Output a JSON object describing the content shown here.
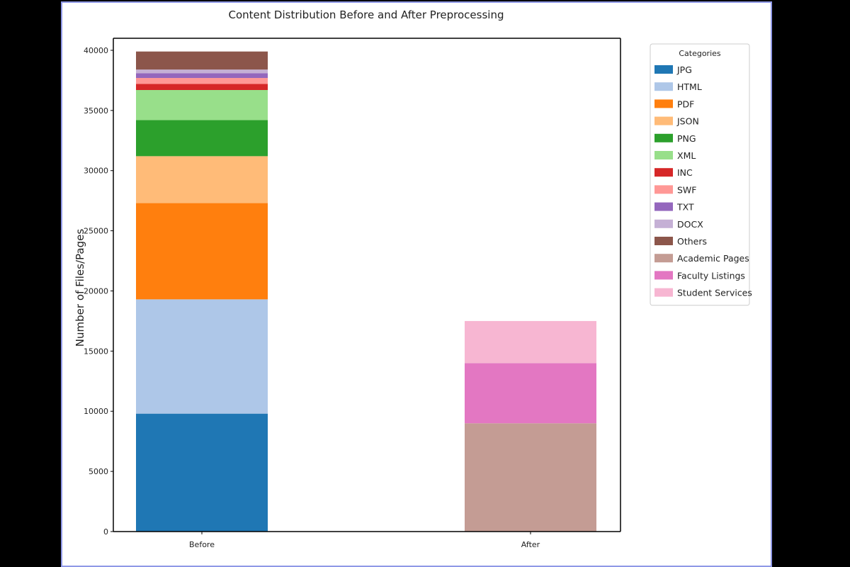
{
  "chart_data": {
    "type": "bar",
    "stacked": true,
    "title": "Content Distribution Before and After Preprocessing",
    "xlabel": "",
    "ylabel": "Number of Files/Pages",
    "categories": [
      "Before",
      "After"
    ],
    "ylim": [
      0,
      41000
    ],
    "yticks": [
      0,
      5000,
      10000,
      15000,
      20000,
      25000,
      30000,
      35000,
      40000
    ],
    "grid": false,
    "legend": {
      "title": "Categories",
      "placement": "outside-right"
    },
    "series": [
      {
        "name": "JPG",
        "color": "#1f77b4",
        "values": [
          9800,
          0
        ]
      },
      {
        "name": "HTML",
        "color": "#aec7e8",
        "values": [
          9500,
          0
        ]
      },
      {
        "name": "PDF",
        "color": "#ff7f0e",
        "values": [
          8000,
          0
        ]
      },
      {
        "name": "JSON",
        "color": "#ffbb78",
        "values": [
          3900,
          0
        ]
      },
      {
        "name": "PNG",
        "color": "#2ca02c",
        "values": [
          3000,
          0
        ]
      },
      {
        "name": "XML",
        "color": "#98df8a",
        "values": [
          2500,
          0
        ]
      },
      {
        "name": "INC",
        "color": "#d62728",
        "values": [
          500,
          0
        ]
      },
      {
        "name": "SWF",
        "color": "#ff9896",
        "values": [
          500,
          0
        ]
      },
      {
        "name": "TXT",
        "color": "#9467bd",
        "values": [
          400,
          0
        ]
      },
      {
        "name": "DOCX",
        "color": "#c5b0d5",
        "values": [
          300,
          0
        ]
      },
      {
        "name": "Others",
        "color": "#8c564b",
        "values": [
          1500,
          0
        ]
      },
      {
        "name": "Academic Pages",
        "color": "#c49c94",
        "values": [
          0,
          9000
        ]
      },
      {
        "name": "Faculty Listings",
        "color": "#e377c2",
        "values": [
          0,
          5000
        ]
      },
      {
        "name": "Student Services",
        "color": "#f7b6d2",
        "values": [
          0,
          3500
        ]
      }
    ]
  }
}
